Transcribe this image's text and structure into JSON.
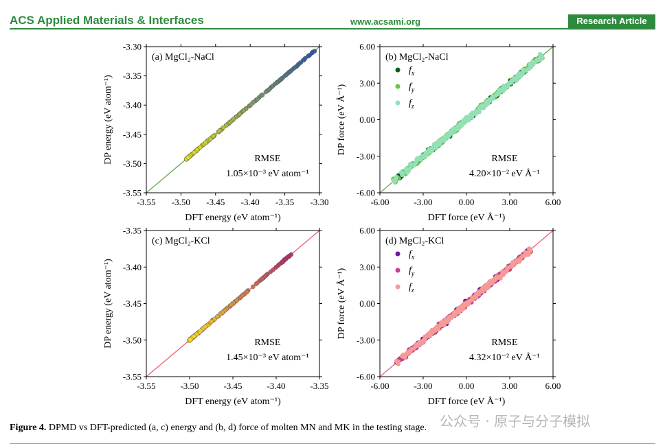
{
  "header": {
    "journal": "ACS Applied Materials & Interfaces",
    "website": "www.acsami.org",
    "article_type": "Research Article",
    "accent_color": "#2e8b3e"
  },
  "caption": {
    "label": "Figure 4.",
    "text": " DPMD vs DFT-predicted (a, c) energy and (b, d) force of molten MN and MK in the testing stage."
  },
  "watermark": "公众号 · 原子与分子模拟",
  "chart_data": [
    {
      "id": "a",
      "type": "scatter",
      "title": "(a) MgCl₂-NaCl",
      "xlabel": "DFT energy (eV atom⁻¹)",
      "ylabel": "DP energy (eV atom⁻¹)",
      "xlim": [
        -3.55,
        -3.3
      ],
      "ylim": [
        -3.55,
        -3.3
      ],
      "xticks": [
        "-3.55",
        "-3.50",
        "-3.45",
        "-3.40",
        "-3.35",
        "-3.30"
      ],
      "yticks": [
        "-3.55",
        "-3.50",
        "-3.45",
        "-3.40",
        "-3.35",
        "-3.30"
      ],
      "rmse_label": "RMSE",
      "rmse_value": "1.05×10⁻³ eV atom⁻¹",
      "line_color": "#6aa84f",
      "cluster": {
        "from": -3.492,
        "to": -3.306,
        "density": "dense near -3.49"
      },
      "color_low": "#e6e619",
      "color_high": "#2c5aa0"
    },
    {
      "id": "b",
      "type": "scatter",
      "title": "(b) MgCl₂-NaCl",
      "xlabel": "DFT force (eV Å⁻¹)",
      "ylabel": "DP force (eV Å⁻¹)",
      "xlim": [
        -6,
        6
      ],
      "ylim": [
        -6,
        6
      ],
      "xticks": [
        "-6.00",
        "-3.00",
        "0.00",
        "3.00",
        "6.00"
      ],
      "yticks": [
        "-6.00",
        "-3.00",
        "0.00",
        "3.00",
        "6.00"
      ],
      "rmse_label": "RMSE",
      "rmse_value": "4.20×10⁻² eV Å⁻¹",
      "line_color": "#6aa84f",
      "range": [
        -5,
        5.2
      ],
      "series": [
        {
          "name": "fx",
          "sub": "x",
          "color": "#0b5e1b"
        },
        {
          "name": "fy",
          "sub": "y",
          "color": "#6cc24a"
        },
        {
          "name": "fz",
          "sub": "z",
          "color": "#93e0b7"
        }
      ]
    },
    {
      "id": "c",
      "type": "scatter",
      "title": "(c) MgCl₂-KCl",
      "xlabel": "DFT energy (eV atom⁻¹)",
      "ylabel": "DP energy (eV atom⁻¹)",
      "xlim": [
        -3.55,
        -3.35
      ],
      "ylim": [
        -3.55,
        -3.35
      ],
      "xticks": [
        "-3.55",
        "-3.50",
        "-3.45",
        "-3.40",
        "-3.35"
      ],
      "yticks": [
        "-3.55",
        "-3.50",
        "-3.45",
        "-3.40",
        "-3.35"
      ],
      "rmse_label": "RMSE",
      "rmse_value": "1.45×10⁻³ eV atom⁻¹",
      "line_color": "#e8607a",
      "cluster": {
        "from": -3.5,
        "to": -3.382,
        "density": "dense near -3.49"
      },
      "color_low": "#ffe020",
      "color_high": "#b0306a"
    },
    {
      "id": "d",
      "type": "scatter",
      "title": "(d) MgCl₂-KCl",
      "xlabel": "DFT force (eV Å⁻¹)",
      "ylabel": "DP force (eV Å⁻¹)",
      "xlim": [
        -6,
        6
      ],
      "ylim": [
        -6,
        6
      ],
      "xticks": [
        "-6.00",
        "-3.00",
        "0.00",
        "3.00",
        "6.00"
      ],
      "yticks": [
        "-6.00",
        "-3.00",
        "0.00",
        "3.00",
        "6.00"
      ],
      "rmse_label": "RMSE",
      "rmse_value": "4.32×10⁻² eV Å⁻¹",
      "line_color": "#e8607a",
      "range": [
        -4.8,
        4.4
      ],
      "series": [
        {
          "name": "fx",
          "sub": "x",
          "color": "#6a1b9a"
        },
        {
          "name": "fy",
          "sub": "y",
          "color": "#c2418a"
        },
        {
          "name": "fz",
          "sub": "z",
          "color": "#f59a94"
        }
      ]
    }
  ]
}
